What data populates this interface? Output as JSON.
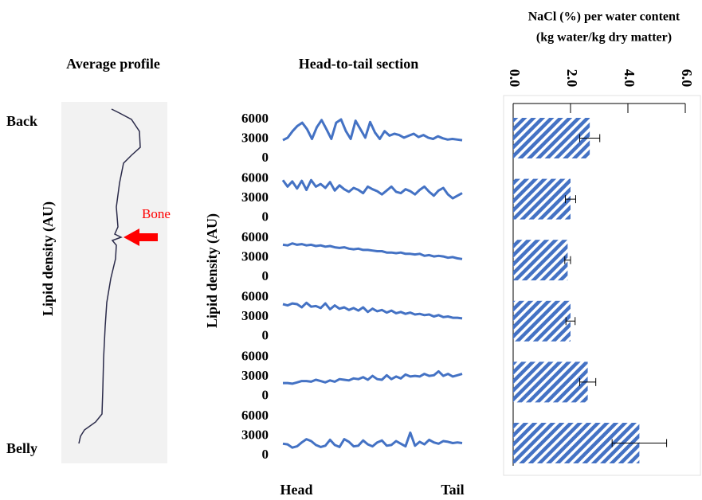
{
  "profile": {
    "title": "Average profile",
    "top_label": "Back",
    "bottom_label": "Belly",
    "y_label": "Lipid density (AU)",
    "annotation": "Bone"
  },
  "chart_data": [
    {
      "type": "line",
      "title": "Head-to-tail section",
      "y_label": "Lipid density (AU)",
      "x_start_label": "Head",
      "x_end_label": "Tail",
      "ylim": [
        0,
        6000
      ],
      "yticks": [
        0,
        3000,
        6000
      ],
      "series": [
        {
          "color": "#4472c4",
          "values": [
            2800,
            3200,
            4200,
            5000,
            5500,
            4500,
            3000,
            4800,
            5900,
            4500,
            3000,
            5500,
            6000,
            4200,
            3000,
            5800,
            4500,
            3200,
            5600,
            4000,
            3000,
            4200,
            3500,
            3800,
            3600,
            3200,
            3500,
            3800,
            3300,
            3600,
            3200,
            3000,
            3400,
            3100,
            2900,
            3000,
            2900,
            2800
          ]
        },
        {
          "color": "#4472c4",
          "values": [
            5800,
            4800,
            5600,
            4500,
            5700,
            4300,
            5800,
            4800,
            5200,
            4600,
            5500,
            4200,
            5000,
            4400,
            4000,
            4600,
            4300,
            3800,
            4800,
            4400,
            4100,
            3600,
            4200,
            4800,
            4000,
            3800,
            4400,
            4100,
            3600,
            4300,
            4800,
            4000,
            3400,
            4200,
            4600,
            3600,
            3000,
            3400,
            3800
          ]
        },
        {
          "color": "#4472c4",
          "values": [
            5000,
            4900,
            5200,
            5000,
            5100,
            4900,
            5000,
            4800,
            4900,
            4700,
            4800,
            4600,
            4500,
            4600,
            4400,
            4300,
            4400,
            4200,
            4200,
            4100,
            4000,
            4000,
            3800,
            3800,
            3700,
            3800,
            3600,
            3600,
            3500,
            3600,
            3300,
            3400,
            3200,
            3300,
            3200,
            3000,
            3100,
            2900,
            2800
          ]
        },
        {
          "color": "#4472c4",
          "values": [
            5000,
            4800,
            5100,
            5000,
            4500,
            5200,
            4600,
            4700,
            4400,
            5100,
            4200,
            4800,
            4300,
            4500,
            4100,
            4400,
            4000,
            4500,
            3800,
            4300,
            3900,
            4100,
            3700,
            4000,
            3600,
            3800,
            3500,
            3700,
            3400,
            3500,
            3300,
            3400,
            3100,
            3300,
            3000,
            3100,
            2900,
            2900,
            2800
          ]
        },
        {
          "color": "#4472c4",
          "values": [
            2000,
            2000,
            1900,
            2100,
            2300,
            2300,
            2200,
            2500,
            2300,
            2100,
            2400,
            2200,
            2600,
            2500,
            2400,
            2700,
            2600,
            2900,
            2500,
            3100,
            2600,
            2500,
            3200,
            2600,
            3000,
            2700,
            3300,
            3000,
            3100,
            3000,
            3400,
            3100,
            3200,
            3800,
            3100,
            3400,
            3000,
            3200,
            3400
          ]
        },
        {
          "color": "#4472c4",
          "values": [
            1800,
            1700,
            1200,
            1400,
            2000,
            2500,
            2200,
            1600,
            1300,
            1500,
            2400,
            1600,
            1300,
            2500,
            2100,
            1400,
            1500,
            2300,
            1700,
            1400,
            2000,
            2300,
            1500,
            1600,
            2200,
            1800,
            1400,
            3500,
            1500,
            2100,
            1700,
            2400,
            2000,
            1800,
            2200,
            2100,
            1900,
            2000,
            1900
          ]
        }
      ]
    },
    {
      "type": "bar",
      "title": [
        "NaCl (%) per water content",
        "(kg water/kg dry matter)"
      ],
      "values": [
        2.67,
        2.0,
        1.9,
        2.0,
        2.6,
        4.4
      ],
      "errors": [
        0.35,
        0.18,
        0.1,
        0.16,
        0.28,
        0.95
      ],
      "xlim": [
        0,
        6
      ],
      "xticks": [
        {
          "value": 0,
          "label": "0.0"
        },
        {
          "value": 2,
          "label": "2.0"
        },
        {
          "value": 4,
          "label": "4.0"
        },
        {
          "value": 6,
          "label": "6.0"
        }
      ],
      "color": "#4472c4"
    }
  ]
}
